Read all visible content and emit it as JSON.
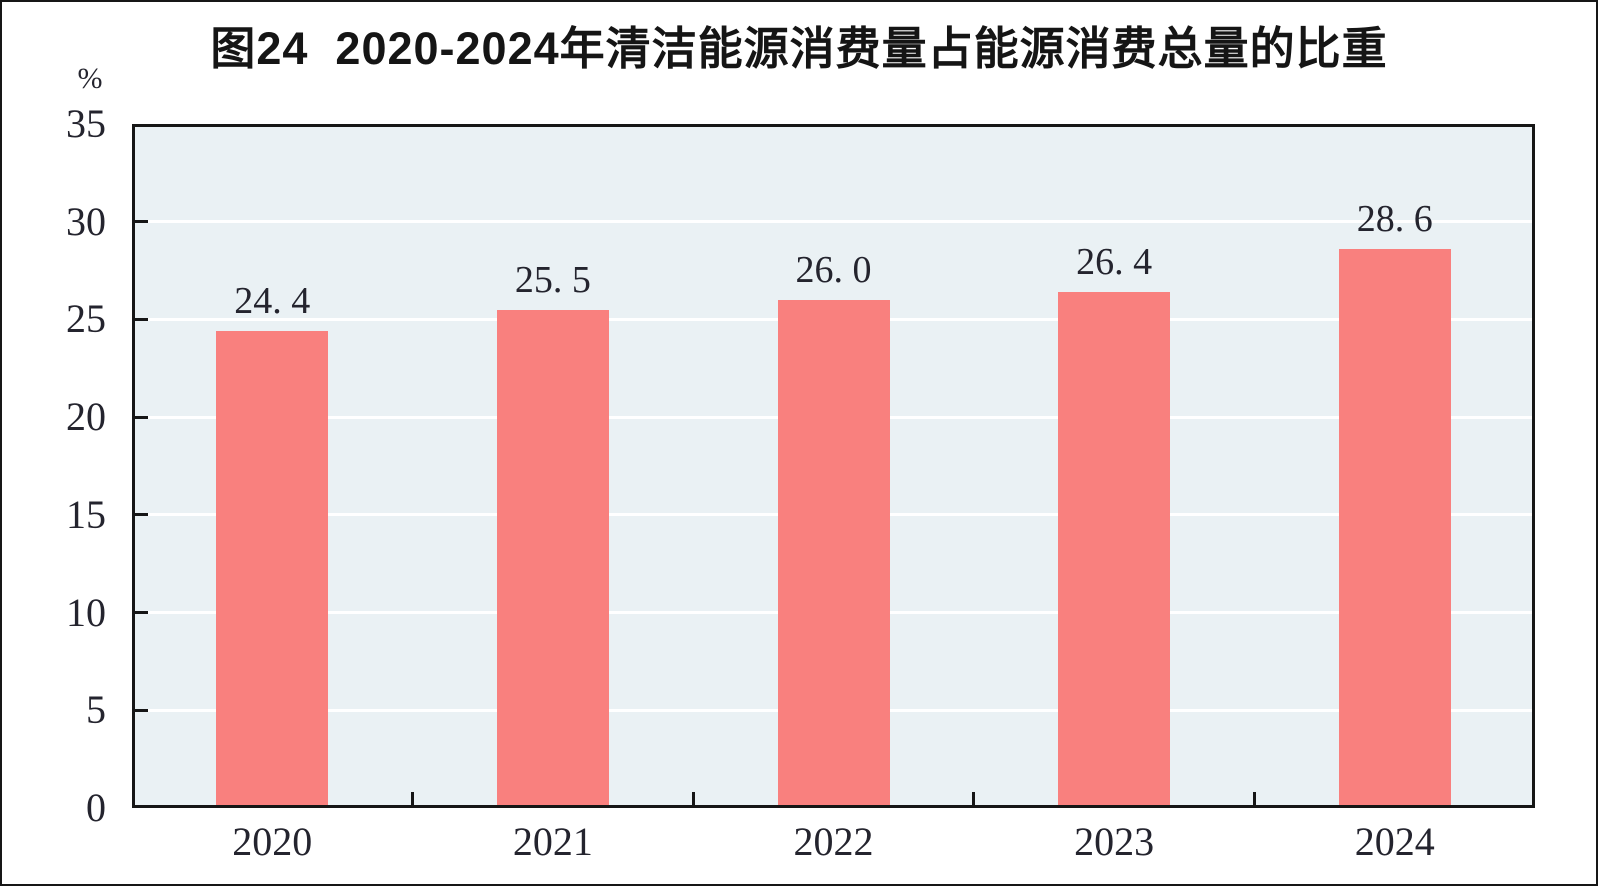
{
  "chart_data": {
    "type": "bar",
    "title": "图24  2020-2024年清洁能源消费量占能源消费总量的比重",
    "ylabel": "%",
    "xlabel": "",
    "categories": [
      "2020",
      "2021",
      "2022",
      "2023",
      "2024"
    ],
    "values": [
      24.4,
      25.5,
      26.0,
      26.4,
      28.6
    ],
    "value_labels": [
      "24. 4",
      "25. 5",
      "26. 0",
      "26. 4",
      "28. 6"
    ],
    "y_ticks": [
      0,
      5,
      10,
      15,
      20,
      25,
      30,
      35
    ],
    "ylim": [
      0,
      35
    ],
    "grid": "horizontal",
    "legend": "none",
    "colors": {
      "bar": "#F9807E",
      "plot_bg": "#EAF1F4",
      "gridline": "#FFFFFF",
      "axis": "#161616",
      "text": "#24242E",
      "canvas_bg": "#FFFFFF"
    }
  }
}
